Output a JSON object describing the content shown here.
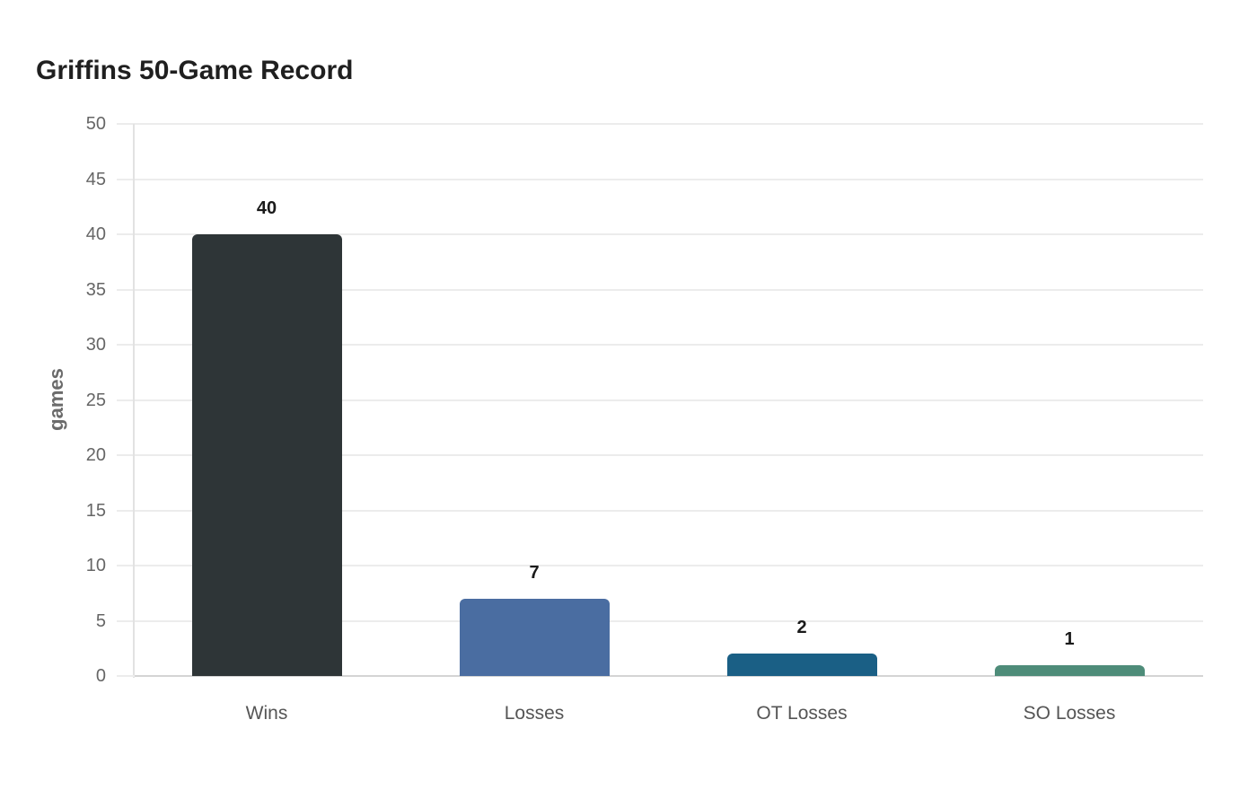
{
  "title": "Griffins 50-Game Record",
  "chart_data": {
    "type": "bar",
    "title": "Griffins 50-Game Record",
    "xlabel": "",
    "ylabel": "games",
    "ylim": [
      0,
      50
    ],
    "yticks": [
      0,
      5,
      10,
      15,
      20,
      25,
      30,
      35,
      40,
      45,
      50
    ],
    "grid": true,
    "legend": null,
    "categories": [
      "Wins",
      "Losses",
      "OT Losses",
      "SO Losses"
    ],
    "values": [
      40,
      7,
      2,
      1
    ],
    "colors": [
      "#2e3537",
      "#4a6da1",
      "#1a5f85",
      "#4e8c79"
    ],
    "data_labels": [
      "40",
      "7",
      "2",
      "1"
    ]
  }
}
